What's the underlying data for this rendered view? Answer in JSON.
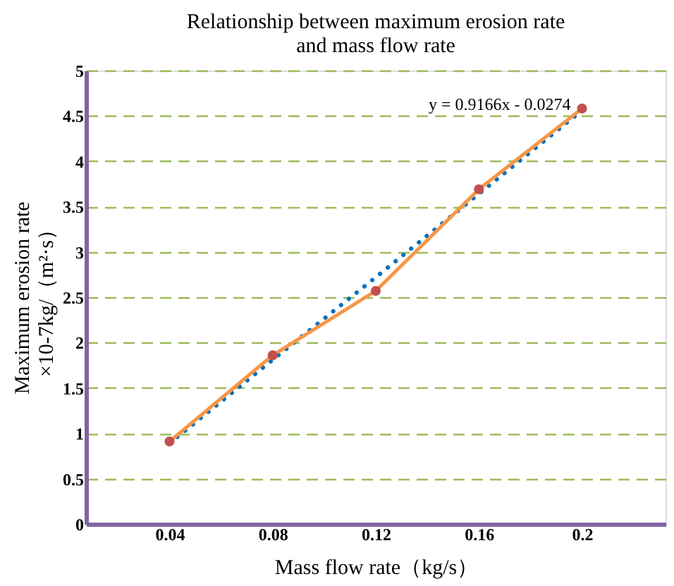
{
  "chart_data": {
    "type": "line",
    "title": "Relationship between maximum erosion rate\nand mass flow rate",
    "xlabel": "Mass flow rate（kg/s）",
    "ylabel": "Maximum erosion rate\n×10-7kg/（m²·s）",
    "categories": [
      "0.04",
      "0.08",
      "0.12",
      "0.16",
      "0.2"
    ],
    "series": [
      {
        "color": "#0070c0",
        "values": [
          0.89,
          1.81,
          2.72,
          3.64,
          4.56
        ],
        "line_style": "dotted",
        "marker": "none"
      },
      {
        "color": "#f79646",
        "values": [
          0.91,
          1.86,
          2.57,
          3.69,
          4.58
        ],
        "line_style": "solid",
        "marker": "none"
      },
      {
        "type": "scatter",
        "color": "#c0504d",
        "values": [
          0.91,
          1.86,
          2.57,
          3.69,
          4.58
        ],
        "marker": "circle"
      }
    ],
    "annotations": [
      {
        "text": "y = 0.9166x - 0.0274",
        "x": "0.2",
        "y": 4.6
      }
    ],
    "ylim": [
      0,
      5
    ],
    "yticks": [
      0,
      0.5,
      1,
      1.5,
      2,
      2.5,
      3,
      3.5,
      4,
      4.5,
      5
    ],
    "grid": "y"
  }
}
